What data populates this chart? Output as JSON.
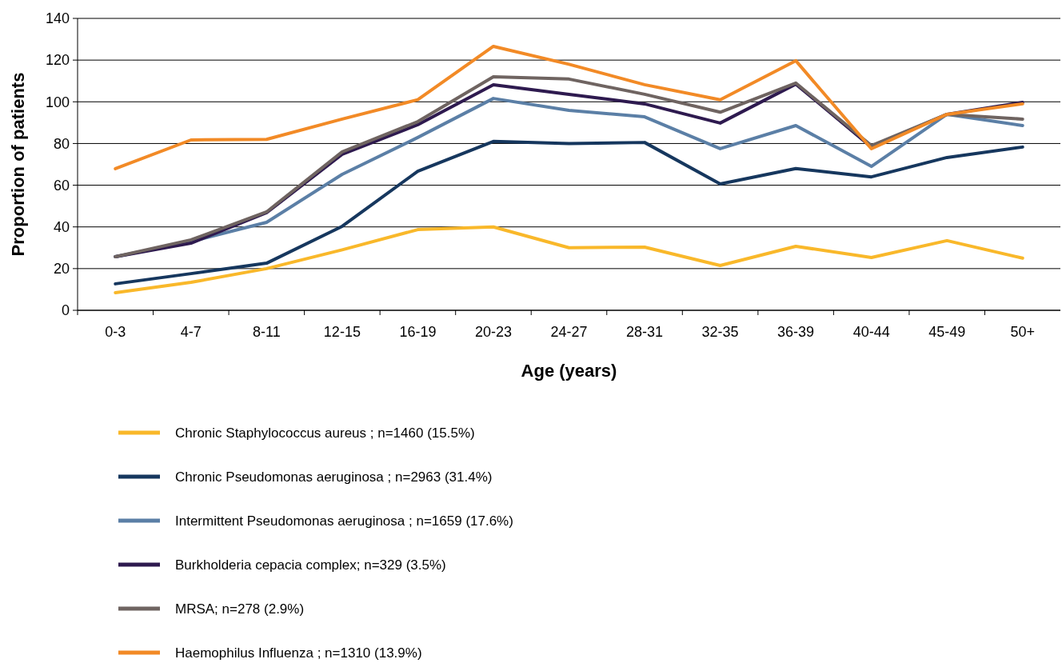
{
  "chart_data": {
    "type": "line",
    "xlabel": "Age (years)",
    "ylabel": "Proportion of patients",
    "categories": [
      "0-3",
      "4-7",
      "8-11",
      "12-15",
      "16-19",
      "20-23",
      "24-27",
      "28-31",
      "32-35",
      "36-39",
      "40-44",
      "45-49",
      "50+"
    ],
    "ylim": [
      0,
      140
    ],
    "yticks": [
      0,
      20,
      40,
      60,
      80,
      100,
      120,
      140
    ],
    "grid": "y",
    "legend": "bottom",
    "line_style": "solid",
    "marker": "none",
    "series": [
      {
        "name": "Chronic Staphylococcus aureus ; n=1460 (15.5%)",
        "color": "#f9b82a",
        "values": [
          8.4,
          13.4,
          20,
          29,
          38.7,
          40,
          30,
          30.3,
          21.5,
          30.7,
          25.3,
          33.4,
          25
        ]
      },
      {
        "name": "Chronic Pseudomonas aeruginosa ; n=2963 (31.4%)",
        "color": "#16375e",
        "values": [
          12.7,
          17.6,
          22.6,
          40.3,
          66.7,
          81,
          80,
          80.5,
          60.6,
          68,
          64,
          73.3,
          78.3
        ]
      },
      {
        "name": "Intermittent Pseudomonas aeruginosa ; n=1659 (17.6%)",
        "color": "#5b7fa6",
        "values": [
          25.7,
          33,
          42.2,
          65.2,
          82.9,
          101.6,
          95.9,
          92.8,
          77.5,
          88.6,
          69,
          94,
          88.6
        ]
      },
      {
        "name": "Burkholderia cepacia complex; n=329 (3.5%)",
        "color": "#2e1a4f",
        "values": [
          25.7,
          32.2,
          46.8,
          74.8,
          89,
          108.2,
          103.6,
          99,
          89.8,
          108.5,
          78.3,
          94,
          99.7
        ]
      },
      {
        "name": "MRSA; n=278 (2.9%)",
        "color": "#6f6461",
        "values": [
          25.7,
          33.8,
          47.2,
          76,
          90.5,
          112,
          110.9,
          103.6,
          95,
          109,
          79,
          94,
          91.7
        ]
      },
      {
        "name": "Haemophilus Influenza ; n=1310 (13.9%)",
        "color": "#f28a26",
        "values": [
          67.9,
          81.7,
          82,
          91.7,
          101,
          126.6,
          118,
          108.2,
          101,
          119.7,
          77.5,
          94,
          99
        ]
      }
    ]
  }
}
